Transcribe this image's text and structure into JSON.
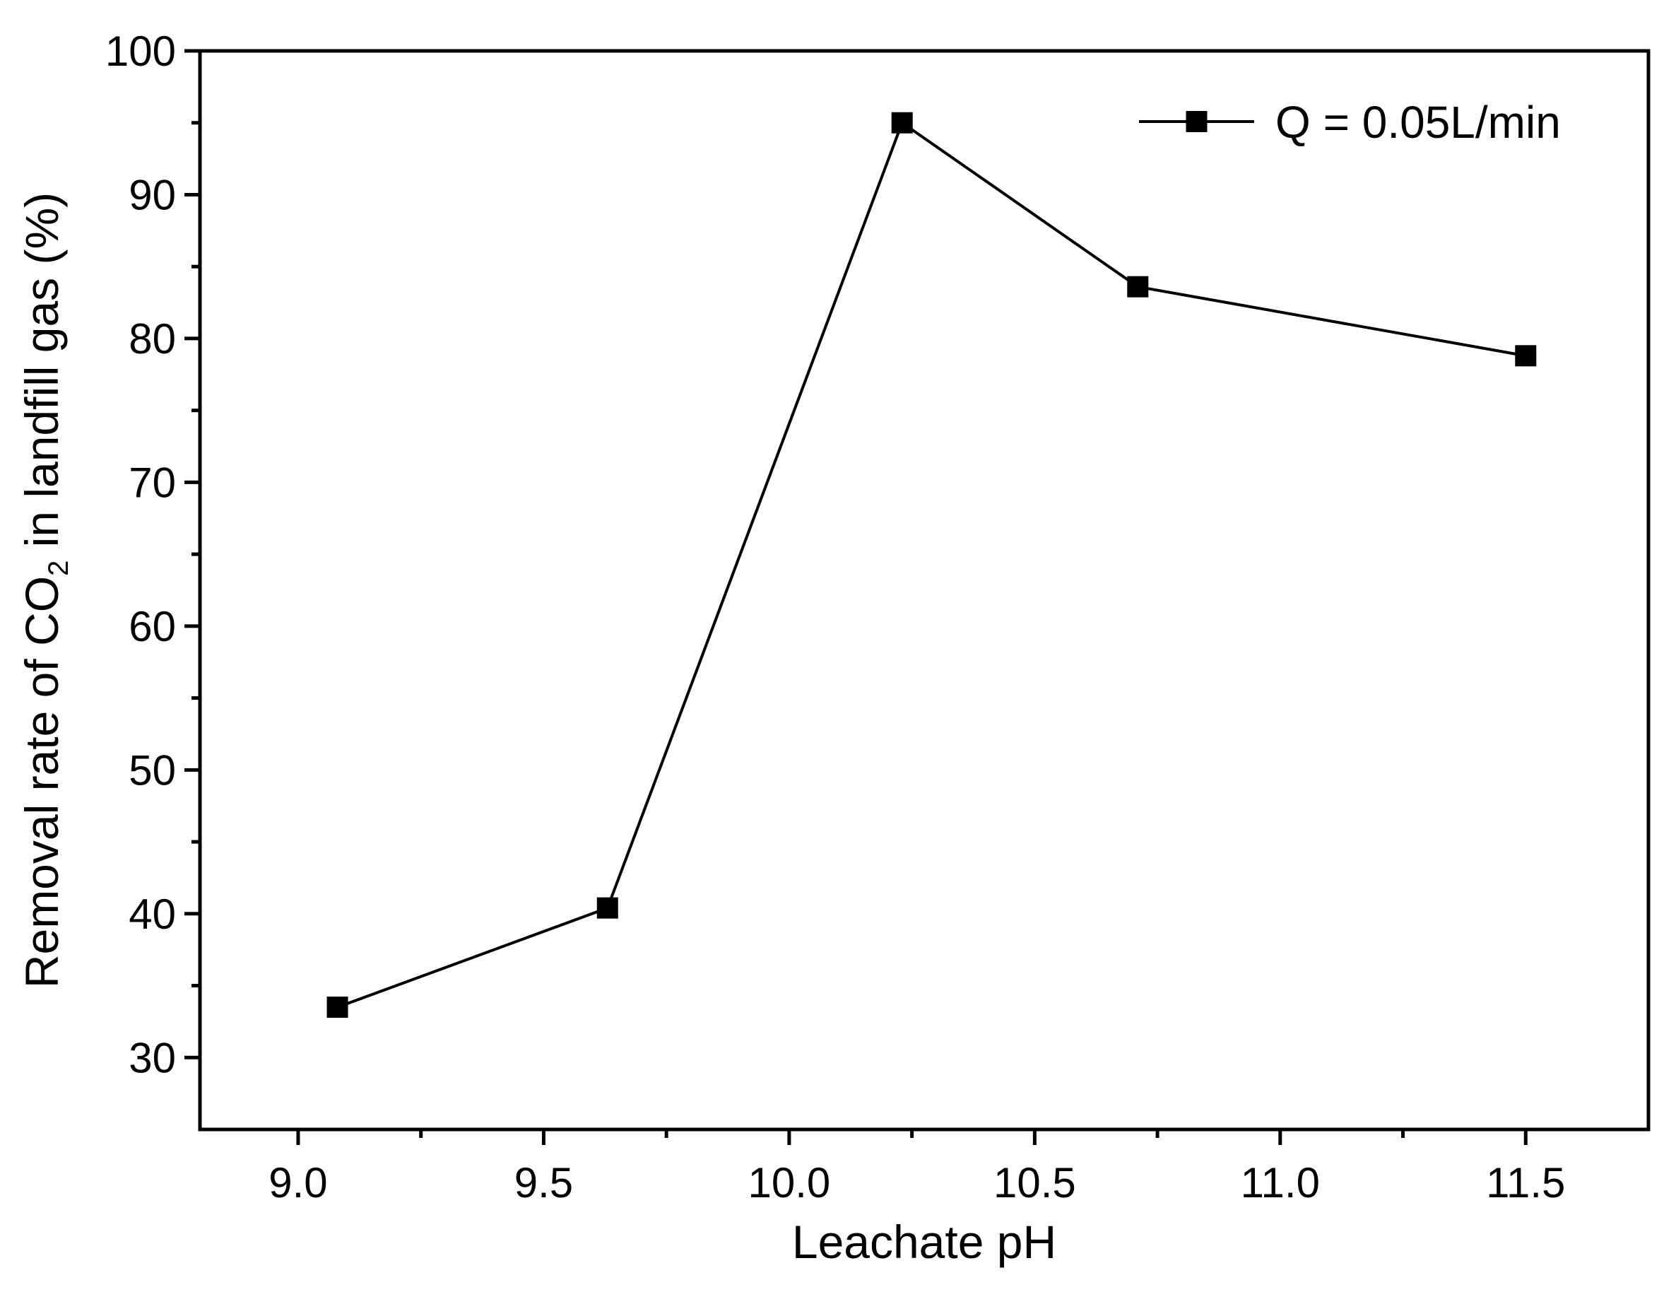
{
  "chart_data": {
    "type": "line",
    "title": "",
    "xlabel": "Leachate pH",
    "ylabel": {
      "before_sub": "Removal rate of CO",
      "sub": "2",
      "after_sub": " in landfill gas (%)"
    },
    "xlim": [
      8.8,
      11.75
    ],
    "ylim": [
      25,
      100
    ],
    "x_ticks": [
      9.0,
      9.5,
      10.0,
      10.5,
      11.0,
      11.5
    ],
    "x_tick_labels": [
      "9.0",
      "9.5",
      "10.0",
      "10.5",
      "11.0",
      "11.5"
    ],
    "x_minor_ticks": [
      9.25,
      9.75,
      10.25,
      10.75,
      11.25
    ],
    "y_ticks": [
      30,
      40,
      50,
      60,
      70,
      80,
      90,
      100
    ],
    "y_tick_labels": [
      "30",
      "40",
      "50",
      "60",
      "70",
      "80",
      "90",
      "100"
    ],
    "y_minor_ticks": [
      35,
      45,
      55,
      65,
      75,
      85,
      95
    ],
    "grid": false,
    "legend_position": "top-right",
    "series": [
      {
        "name": "Q = 0.05L/min",
        "color": "#000000",
        "marker": "square",
        "x": [
          9.08,
          9.63,
          10.23,
          10.71,
          11.5
        ],
        "y": [
          33.5,
          40.4,
          95.0,
          83.6,
          78.8
        ]
      }
    ]
  }
}
